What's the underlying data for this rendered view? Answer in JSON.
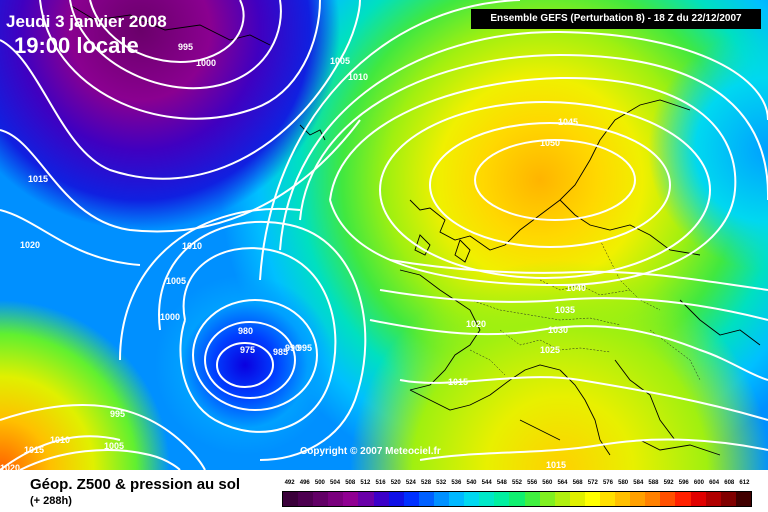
{
  "header": {
    "date": "Jeudi 3 janvier 2008",
    "time": "19:00 locale",
    "run_info": "Ensemble GEFS (Perturbation 8)  -  18 Z du 22/12/2007"
  },
  "copyright": "Copyright © 2007 Meteociel.fr",
  "legend": {
    "title": "Géop. Z500 & pression au sol",
    "subtitle": "(+ 288h)",
    "scale_values": [
      "492",
      "496",
      "500",
      "504",
      "508",
      "512",
      "516",
      "520",
      "524",
      "528",
      "532",
      "536",
      "540",
      "544",
      "548",
      "552",
      "556",
      "560",
      "564",
      "568",
      "572",
      "576",
      "580",
      "584",
      "588",
      "592",
      "596",
      "600",
      "604",
      "608",
      "612"
    ],
    "scale_colors": [
      "#3a003a",
      "#4d0050",
      "#620066",
      "#7a007d",
      "#900092",
      "#6a00a8",
      "#3c00c8",
      "#1010e6",
      "#0030ff",
      "#0060ff",
      "#0090ff",
      "#00b8ff",
      "#00d8f0",
      "#00e8c8",
      "#00f0a0",
      "#10f070",
      "#40f040",
      "#80f020",
      "#b0f010",
      "#e0f000",
      "#ffff00",
      "#ffe000",
      "#ffc000",
      "#ffa000",
      "#ff8000",
      "#ff5000",
      "#ff2000",
      "#e00000",
      "#b00000",
      "#800000",
      "#400000"
    ]
  },
  "isobar_labels": [
    "995",
    "1000",
    "1005",
    "1010",
    "1015",
    "1020",
    "1045",
    "1050",
    "1040",
    "1035",
    "1030",
    "1025",
    "1020",
    "1015",
    "1010",
    "1005",
    "1000",
    "980",
    "975",
    "985",
    "990",
    "995",
    "995",
    "1010",
    "1005",
    "1015",
    "1020",
    "1015"
  ]
}
